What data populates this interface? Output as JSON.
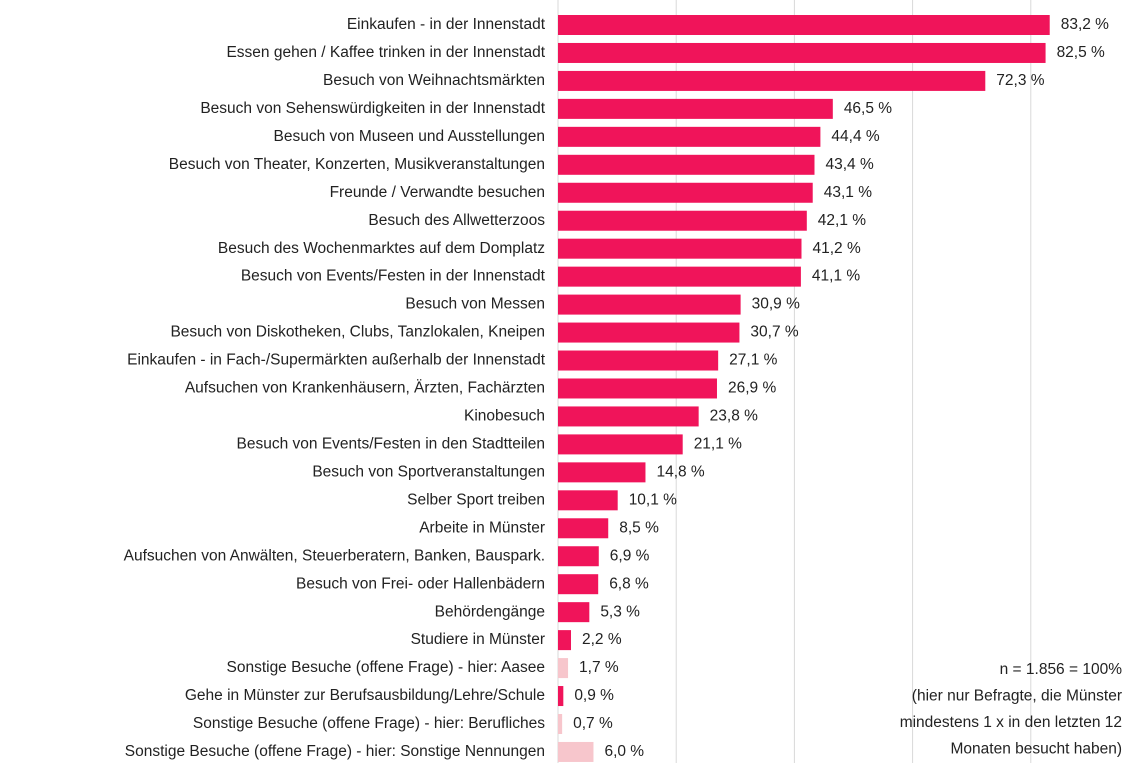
{
  "chart_data": {
    "type": "barh",
    "categories": [
      "Einkaufen - in der Innenstadt",
      "Essen gehen / Kaffee trinken in der Innenstadt",
      "Besuch von Weihnachtsmärkten",
      "Besuch von Sehenswürdigkeiten in der Innenstadt",
      "Besuch von Museen und Ausstellungen",
      "Besuch von Theater, Konzerten, Musikveranstaltungen",
      "Freunde / Verwandte besuchen",
      "Besuch des Allwetterzoos",
      "Besuch des Wochenmarktes auf dem Domplatz",
      "Besuch von Events/Festen in der Innenstadt",
      "Besuch von Messen",
      "Besuch von Diskotheken, Clubs, Tanzlokalen, Kneipen",
      "Einkaufen - in Fach-/Supermärkten außerhalb der Innenstadt",
      "Aufsuchen von Krankenhäusern, Ärzten, Fachärzten",
      "Kinobesuch",
      "Besuch von Events/Festen in den Stadtteilen",
      "Besuch von Sportveranstaltungen",
      "Selber Sport treiben",
      "Arbeite in Münster",
      "Aufsuchen von Anwälten, Steuerberatern, Banken, Bauspark.",
      "Besuch von Frei- oder Hallenbädern",
      "Behördengänge",
      "Studiere in Münster",
      "Sonstige Besuche (offene Frage) - hier: Aasee",
      "Gehe in Münster zur Berufsausbildung/Lehre/Schule",
      "Sonstige Besuche (offene Frage) - hier: Berufliches",
      "Sonstige Besuche (offene Frage) - hier: Sonstige Nennungen"
    ],
    "values": [
      83.2,
      82.5,
      72.3,
      46.5,
      44.4,
      43.4,
      43.1,
      42.1,
      41.2,
      41.1,
      30.9,
      30.7,
      27.1,
      26.9,
      23.8,
      21.1,
      14.8,
      10.1,
      8.5,
      6.9,
      6.8,
      5.3,
      2.2,
      1.7,
      0.9,
      0.7,
      6.0
    ],
    "value_labels": [
      "83,2 %",
      "82,5 %",
      "72,3 %",
      "46,5 %",
      "44,4 %",
      "43,4 %",
      "43,1 %",
      "42,1 %",
      "41,2 %",
      "41,1 %",
      "30,9 %",
      "30,7 %",
      "27,1 %",
      "26,9 %",
      "23,8 %",
      "21,1 %",
      "14,8 %",
      "10,1 %",
      "8,5 %",
      "6,9 %",
      "6,8 %",
      "5,3 %",
      "2,2 %",
      "1,7 %",
      "0,9 %",
      "0,7 %",
      "6,0 %"
    ],
    "colors": [
      "#f0145a",
      "#f0145a",
      "#f0145a",
      "#f0145a",
      "#f0145a",
      "#f0145a",
      "#f0145a",
      "#f0145a",
      "#f0145a",
      "#f0145a",
      "#f0145a",
      "#f0145a",
      "#f0145a",
      "#f0145a",
      "#f0145a",
      "#f0145a",
      "#f0145a",
      "#f0145a",
      "#f0145a",
      "#f0145a",
      "#f0145a",
      "#f0145a",
      "#f0145a",
      "#f7c6cc",
      "#f0145a",
      "#f7c6cc",
      "#f7c6cc"
    ],
    "xlim": [
      0,
      90
    ],
    "xticks": [
      0,
      20,
      40,
      60,
      80
    ],
    "grid": true,
    "annotation": [
      "n = 1.856 = 100%",
      "(hier nur Befragte, die Münster",
      "mindestens 1 x in den letzten 12",
      "Monaten besucht haben)"
    ]
  }
}
